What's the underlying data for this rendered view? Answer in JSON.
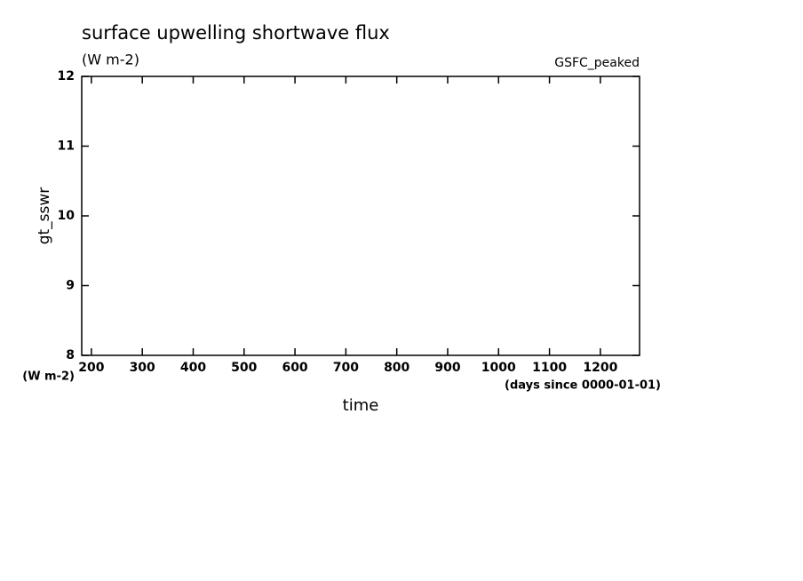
{
  "chart_data": {
    "type": "line",
    "title": "surface upwelling shortwave flux",
    "subtitle": "(W m-2)",
    "annotation": "GSFC_peaked",
    "y_label": "gt_sswr",
    "y_units": "(W m-2)",
    "x_label": "time",
    "x_units": "(days since 0000-01-01)",
    "xlim": [
      181,
      1277
    ],
    "xticks": [
      200,
      300,
      400,
      500,
      600,
      700,
      800,
      900,
      1000,
      1100,
      1200
    ],
    "ylim": [
      8,
      12
    ],
    "yticks": [
      8,
      9,
      10,
      11,
      12
    ],
    "series": []
  }
}
